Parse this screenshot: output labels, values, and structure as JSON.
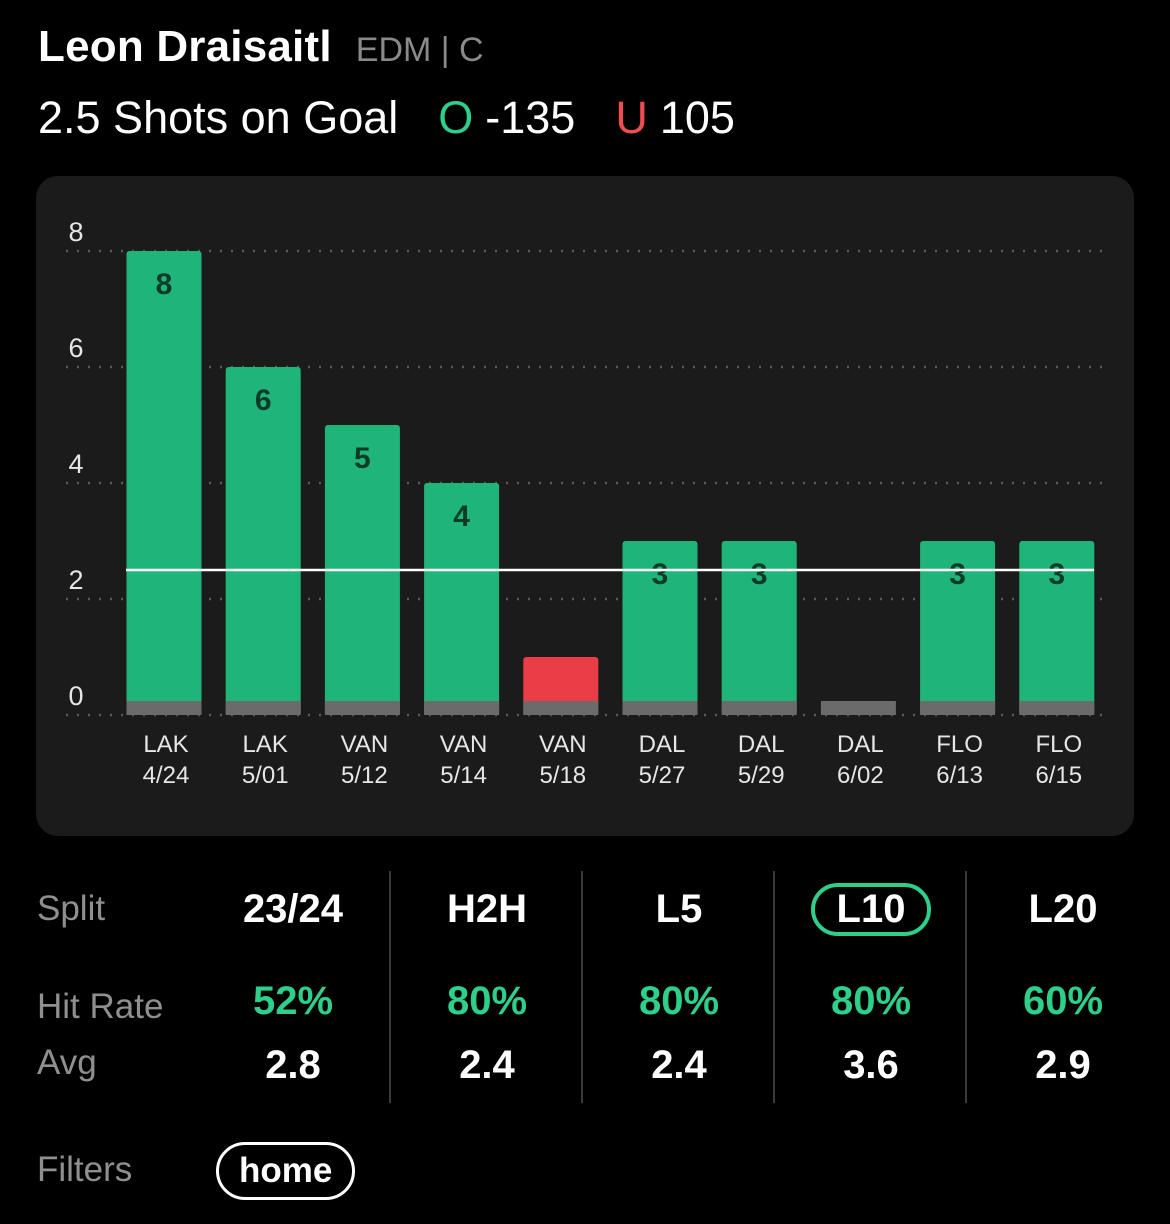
{
  "player": {
    "name": "Leon Draisaitl",
    "team_pos": "EDM | C"
  },
  "prop": {
    "label": "2.5 Shots on Goal",
    "over_mark": "O",
    "over_odds": "-135",
    "under_mark": "U",
    "under_odds": "105"
  },
  "colors": {
    "over": "#2ecf8a",
    "under": "#ef4d52",
    "bar_hit": "#20b578",
    "bar_miss": "#ea3d48",
    "bar_zero": "#6b6b6b"
  },
  "chart_data": {
    "type": "bar",
    "line": 2.5,
    "ylim": [
      0,
      8
    ],
    "yticks": [
      0,
      2,
      4,
      6,
      8
    ],
    "categories": [
      {
        "team": "LAK",
        "date": "4/24"
      },
      {
        "team": "LAK",
        "date": "5/01"
      },
      {
        "team": "VAN",
        "date": "5/12"
      },
      {
        "team": "VAN",
        "date": "5/14"
      },
      {
        "team": "VAN",
        "date": "5/18"
      },
      {
        "team": "DAL",
        "date": "5/27"
      },
      {
        "team": "DAL",
        "date": "5/29"
      },
      {
        "team": "DAL",
        "date": "6/02"
      },
      {
        "team": "FLO",
        "date": "6/13"
      },
      {
        "team": "FLO",
        "date": "6/15"
      }
    ],
    "values": [
      8,
      6,
      5,
      4,
      1,
      3,
      3,
      0,
      3,
      3
    ],
    "value_labels": [
      "8",
      "6",
      "5",
      "4",
      "",
      "3",
      "3",
      "",
      "3",
      "3"
    ]
  },
  "stats": {
    "labels": {
      "split": "Split",
      "hit_rate": "Hit Rate",
      "avg": "Avg"
    },
    "columns": [
      {
        "split": "23/24",
        "hit_rate": "52%",
        "avg": "2.8",
        "active": false
      },
      {
        "split": "H2H",
        "hit_rate": "80%",
        "avg": "2.4",
        "active": false
      },
      {
        "split": "L5",
        "hit_rate": "80%",
        "avg": "2.4",
        "active": false
      },
      {
        "split": "L10",
        "hit_rate": "80%",
        "avg": "3.6",
        "active": true
      },
      {
        "split": "L20",
        "hit_rate": "60%",
        "avg": "2.9",
        "active": false
      }
    ]
  },
  "filters": {
    "label": "Filters",
    "chips": [
      "home"
    ]
  }
}
